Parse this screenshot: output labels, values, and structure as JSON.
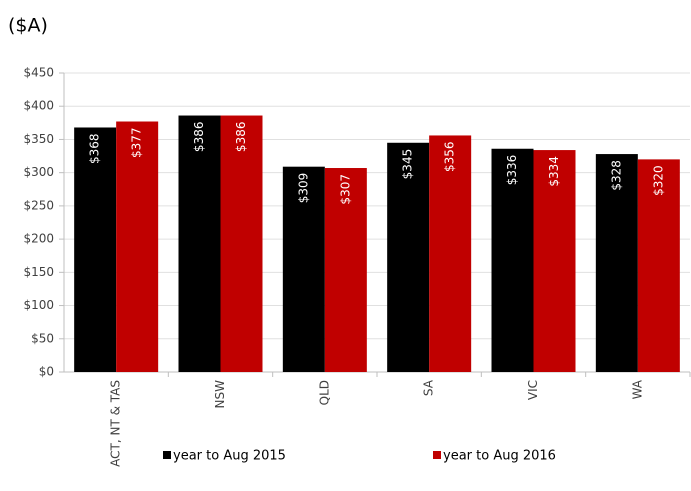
{
  "chart_data": {
    "type": "bar",
    "title": "($A)",
    "categories": [
      "ACT, NT & TAS",
      "NSW",
      "QLD",
      "SA",
      "VIC",
      "WA"
    ],
    "series": [
      {
        "name": "year to Aug 2015",
        "color": "#000000",
        "values": [
          368,
          386,
          309,
          345,
          336,
          328
        ],
        "value_labels": [
          "$368",
          "$386",
          "$309",
          "$345",
          "$336",
          "$328"
        ]
      },
      {
        "name": "year to Aug 2016",
        "color": "#c00000",
        "values": [
          377,
          386,
          307,
          356,
          334,
          320
        ],
        "value_labels": [
          "$377",
          "$386",
          "$307",
          "$356",
          "$334",
          "$320"
        ]
      }
    ],
    "ylim": [
      0,
      450
    ],
    "yticks": [
      {
        "value": 0,
        "label": "$0"
      },
      {
        "value": 50,
        "label": "$50"
      },
      {
        "value": 100,
        "label": "$100"
      },
      {
        "value": 150,
        "label": "$150"
      },
      {
        "value": 200,
        "label": "$200"
      },
      {
        "value": 250,
        "label": "$250"
      },
      {
        "value": 300,
        "label": "$300"
      },
      {
        "value": 350,
        "label": "$350"
      },
      {
        "value": 400,
        "label": "$400"
      },
      {
        "value": 450,
        "label": "$450"
      }
    ],
    "grid": true,
    "legend": "bottom"
  }
}
